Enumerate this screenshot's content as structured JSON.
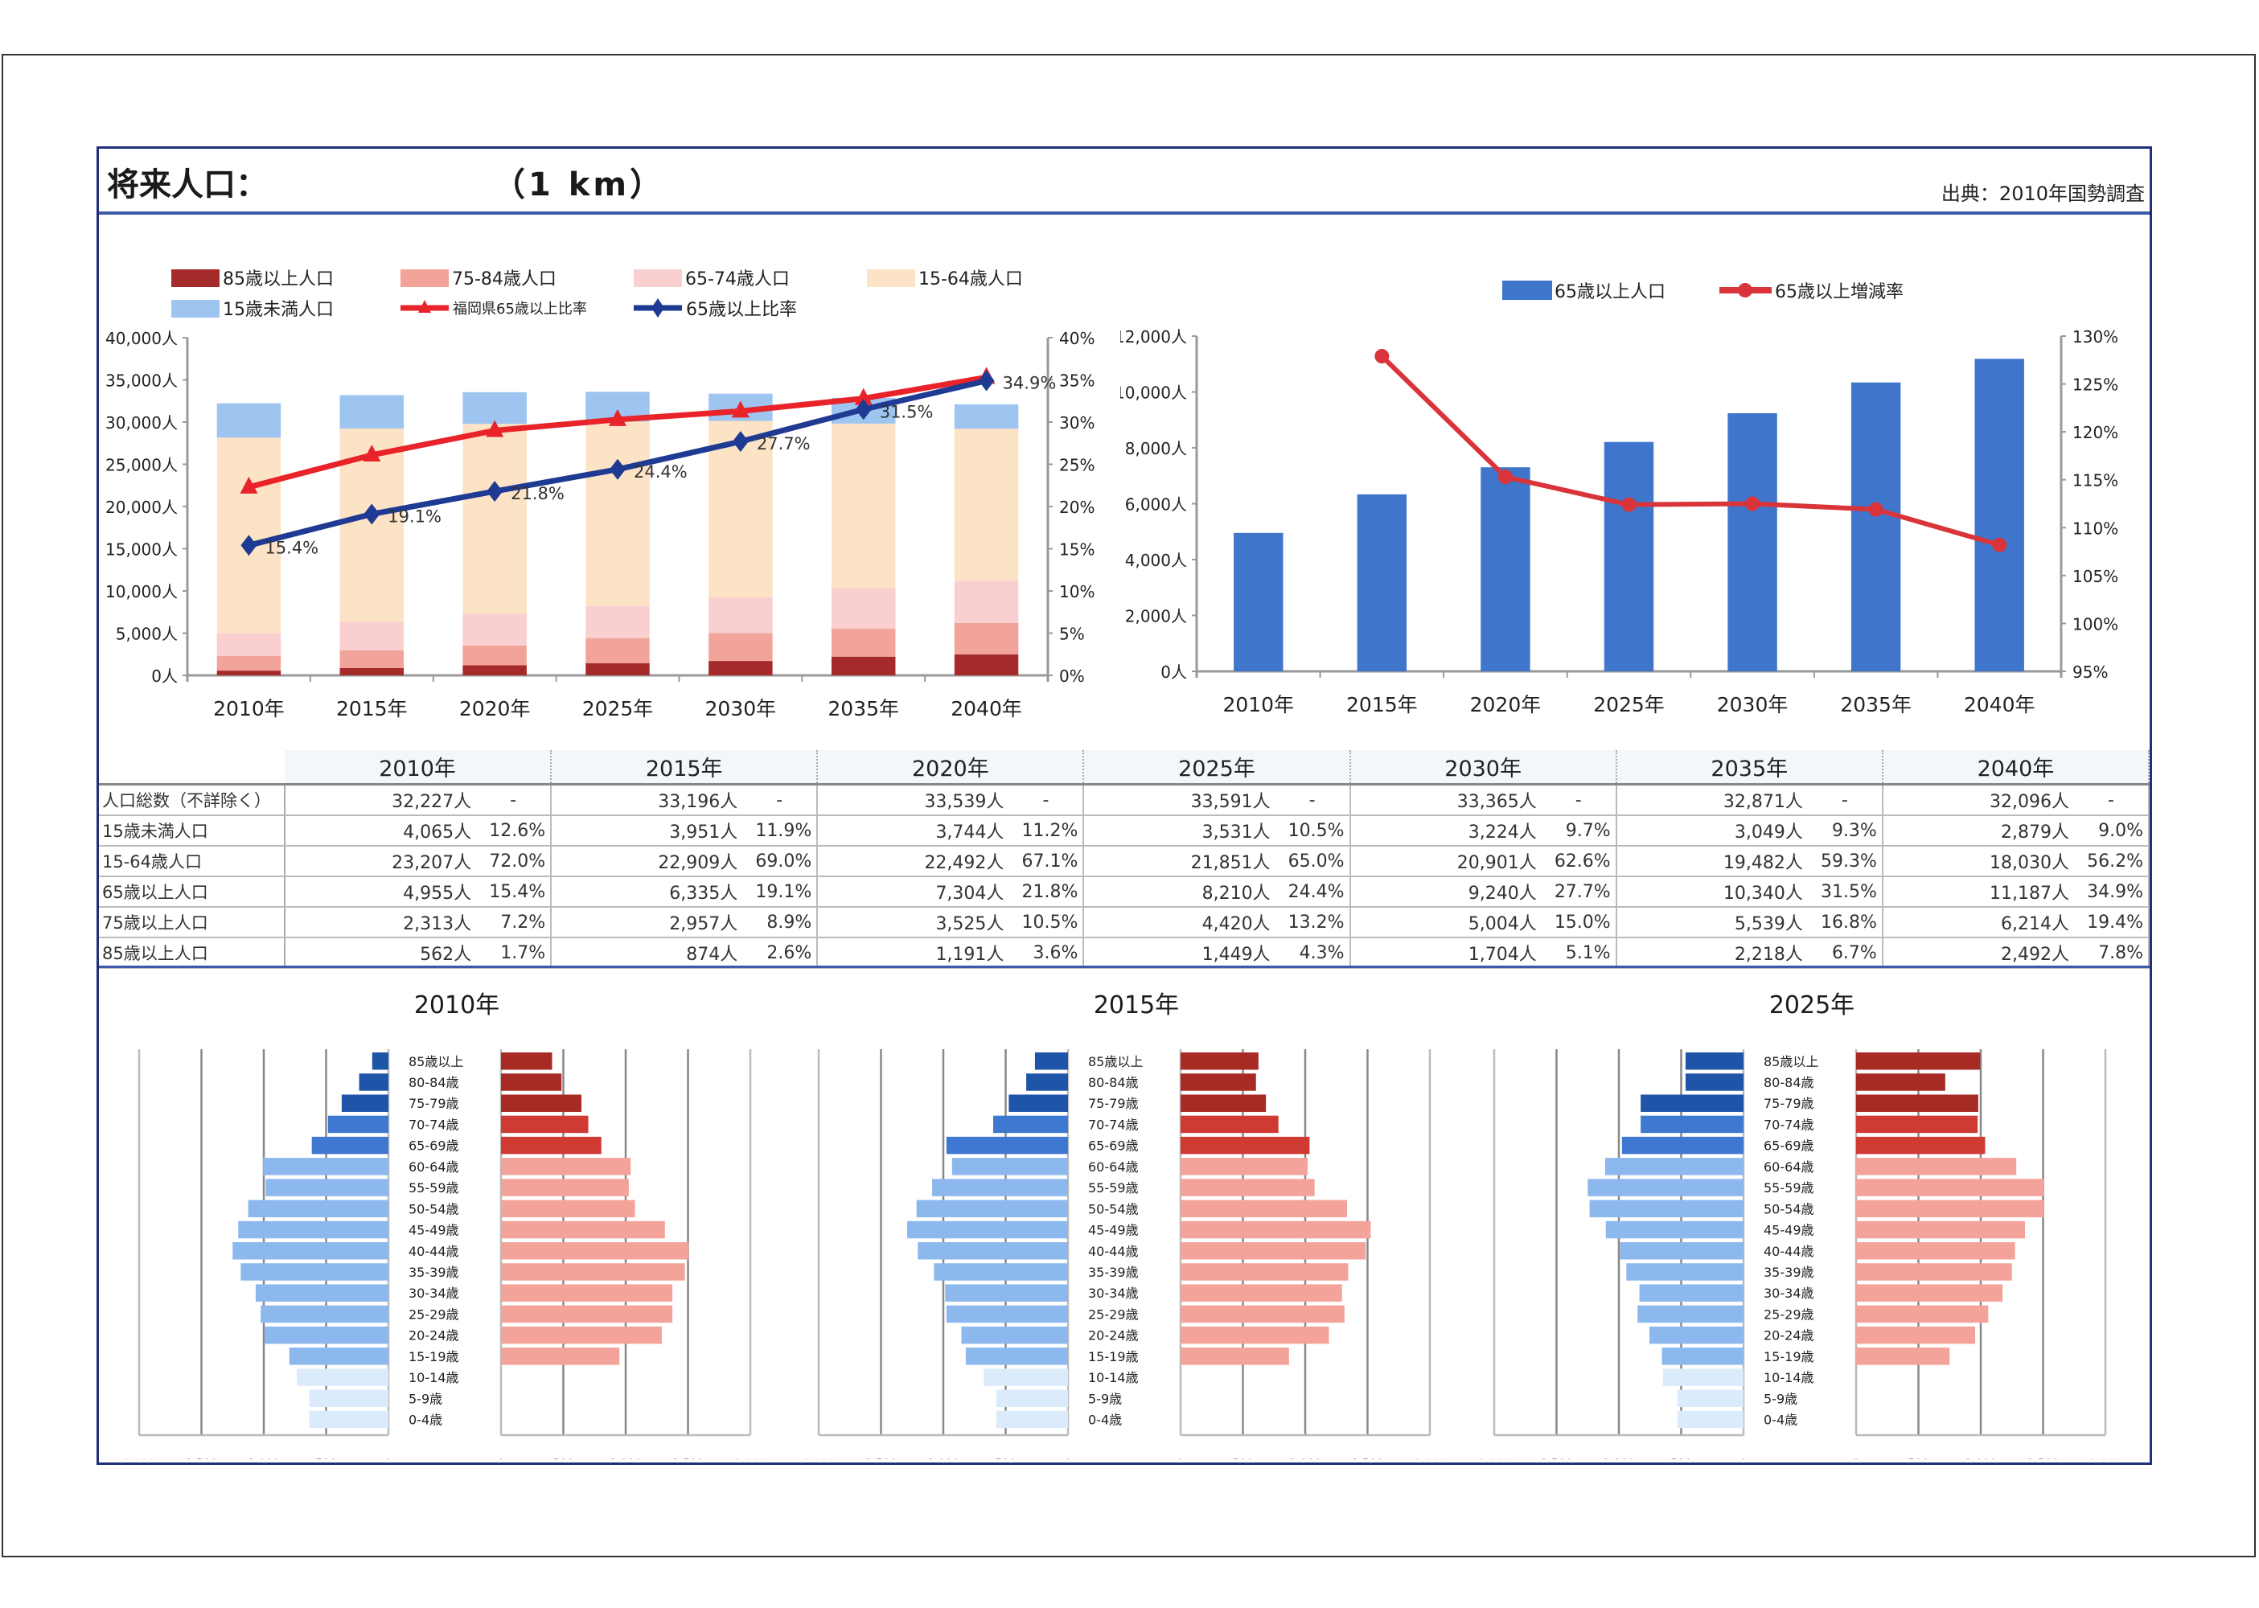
{
  "header": {
    "title": "将来人口：",
    "unit": "（1 km）",
    "source": "出典：2010年国勢調査"
  },
  "colors": {
    "age85plus": "#a52a2a",
    "age75_84": "#f2a49a",
    "age65_74": "#f9cfd0",
    "age15_64": "#fde3c6",
    "under15": "#9ec4f0",
    "fukuoka_ratio": "#e8232a",
    "ratio65": "#1f3a93",
    "bar65": "#3f76cc",
    "growth_line": "#d9343a",
    "pyr_male_old": "#1f55a8",
    "pyr_male_mid": "#3e78d0",
    "pyr_male_work": "#8cb8ee",
    "pyr_male_young": "#dcebfb",
    "pyr_female_old": "#a82a25",
    "pyr_female_mid": "#cf3a33",
    "pyr_female_work": "#f4a39a",
    "pyr_female_young": "#ffffff"
  },
  "chart_data": [
    {
      "type": "bar",
      "subtype": "stacked-bar-with-lines",
      "title": "",
      "categories": [
        "2010年",
        "2015年",
        "2020年",
        "2025年",
        "2030年",
        "2035年",
        "2040年"
      ],
      "series": [
        {
          "name": "85歳以上人口",
          "axis": "left",
          "values": [
            562,
            874,
            1191,
            1449,
            1704,
            2218,
            2492
          ]
        },
        {
          "name": "75-84歳人口",
          "axis": "left",
          "values": [
            1751,
            2083,
            2334,
            2971,
            3300,
            3321,
            3722
          ]
        },
        {
          "name": "65-74歳人口",
          "axis": "left",
          "values": [
            2642,
            3378,
            3779,
            3790,
            4236,
            4801,
            4973
          ]
        },
        {
          "name": "15-64歳人口",
          "axis": "left",
          "values": [
            23207,
            22909,
            22492,
            21851,
            20901,
            19482,
            18030
          ]
        },
        {
          "name": "15歳未満人口",
          "axis": "left",
          "values": [
            4065,
            3951,
            3744,
            3531,
            3224,
            3049,
            2879
          ]
        },
        {
          "name": "福岡県65歳以上比率",
          "type": "line",
          "axis": "right",
          "values": [
            22.3,
            26.1,
            29.0,
            30.3,
            31.3,
            32.8,
            35.3
          ]
        },
        {
          "name": "65歳以上比率",
          "type": "line",
          "axis": "right",
          "values": [
            15.4,
            19.1,
            21.8,
            24.4,
            27.7,
            31.5,
            34.9
          ],
          "labels": [
            "15.4%",
            "19.1%",
            "21.8%",
            "24.4%",
            "27.7%",
            "31.5%",
            "34.9%"
          ]
        }
      ],
      "legend_order": [
        "85歳以上人口",
        "75-84歳人口",
        "65-74歳人口",
        "15-64歳人口",
        "15歳未満人口",
        "福岡県65歳以上比率",
        "65歳以上比率"
      ],
      "legend_position": "top",
      "ylim": [
        0,
        40000
      ],
      "yticks": [
        "0人",
        "5,000人",
        "10,000人",
        "15,000人",
        "20,000人",
        "25,000人",
        "30,000人",
        "35,000人",
        "40,000人"
      ],
      "y2lim": [
        0,
        40
      ],
      "y2ticks": [
        "0%",
        "5%",
        "10%",
        "15%",
        "20%",
        "25%",
        "30%",
        "35%",
        "40%"
      ],
      "grid": false
    },
    {
      "type": "bar",
      "subtype": "bar-with-line",
      "title": "",
      "categories": [
        "2010年",
        "2015年",
        "2020年",
        "2025年",
        "2030年",
        "2035年",
        "2040年"
      ],
      "series": [
        {
          "name": "65歳以上人口",
          "axis": "left",
          "values": [
            4955,
            6335,
            7304,
            8210,
            9240,
            10340,
            11187
          ]
        },
        {
          "name": "65歳以上増減率",
          "type": "line",
          "axis": "right",
          "values": [
            null,
            127.9,
            115.3,
            112.4,
            112.5,
            111.9,
            108.2
          ]
        }
      ],
      "legend_position": "top",
      "ylim": [
        0,
        12000
      ],
      "yticks": [
        "0人",
        "2,000人",
        "4,000人",
        "6,000人",
        "8,000人",
        "10,000人",
        "12,000人"
      ],
      "y2lim": [
        95,
        130
      ],
      "y2ticks": [
        "95%",
        "100%",
        "105%",
        "110%",
        "115%",
        "120%",
        "125%",
        "130%"
      ],
      "grid": false
    },
    {
      "type": "table",
      "columns": [
        "2010年",
        "2015年",
        "2020年",
        "2025年",
        "2030年",
        "2035年",
        "2040年"
      ],
      "rows": [
        {
          "label": "人口総数（不詳除く）",
          "values": [
            "32,227人",
            "33,196人",
            "33,539人",
            "33,591人",
            "33,365人",
            "32,871人",
            "32,096人"
          ],
          "pcts": [
            "-",
            "-",
            "-",
            "-",
            "-",
            "-",
            "-"
          ]
        },
        {
          "label": "15歳未満人口",
          "values": [
            "4,065人",
            "3,951人",
            "3,744人",
            "3,531人",
            "3,224人",
            "3,049人",
            "2,879人"
          ],
          "pcts": [
            "12.6%",
            "11.9%",
            "11.2%",
            "10.5%",
            "9.7%",
            "9.3%",
            "9.0%"
          ]
        },
        {
          "label": "15-64歳人口",
          "values": [
            "23,207人",
            "22,909人",
            "22,492人",
            "21,851人",
            "20,901人",
            "19,482人",
            "18,030人"
          ],
          "pcts": [
            "72.0%",
            "69.0%",
            "67.1%",
            "65.0%",
            "62.6%",
            "59.3%",
            "56.2%"
          ]
        },
        {
          "label": "65歳以上人口",
          "values": [
            "4,955人",
            "6,335人",
            "7,304人",
            "8,210人",
            "9,240人",
            "10,340人",
            "11,187人"
          ],
          "pcts": [
            "15.4%",
            "19.1%",
            "21.8%",
            "24.4%",
            "27.7%",
            "31.5%",
            "34.9%"
          ]
        },
        {
          "label": "75歳以上人口",
          "values": [
            "2,313人",
            "2,957人",
            "3,525人",
            "4,420人",
            "5,004人",
            "5,539人",
            "6,214人"
          ],
          "pcts": [
            "7.2%",
            "8.9%",
            "10.5%",
            "13.2%",
            "15.0%",
            "16.8%",
            "19.4%"
          ]
        },
        {
          "label": "85歳以上人口",
          "values": [
            "562人",
            "874人",
            "1,191人",
            "1,449人",
            "1,704人",
            "2,218人",
            "2,492人"
          ],
          "pcts": [
            "1.7%",
            "2.6%",
            "3.6%",
            "4.3%",
            "5.1%",
            "6.7%",
            "7.8%"
          ]
        }
      ]
    },
    {
      "type": "bar",
      "subtype": "population-pyramid",
      "title": "2010年",
      "age_groups": [
        "85歳以上",
        "80-84歳",
        "75-79歳",
        "70-74歳",
        "65-69歳",
        "60-64歳",
        "55-59歳",
        "50-54歳",
        "45-49歳",
        "40-44歳",
        "35-39歳",
        "30-34歳",
        "25-29歳",
        "20-24歳",
        "15-19歳",
        "10-14歳",
        "5-9歳",
        "0-4歳"
      ],
      "male": [
        130,
        235,
        375,
        485,
        615,
        1005,
        985,
        1125,
        1205,
        1250,
        1185,
        1065,
        1025,
        995,
        795,
        735,
        635,
        635
      ],
      "female": [
        410,
        485,
        645,
        700,
        805,
        1040,
        1025,
        1075,
        1315,
        1505,
        1475,
        1375,
        1375,
        1290,
        950,
        0,
        0,
        0
      ],
      "xlim": [
        0,
        2000
      ],
      "xticks_left": [
        "2,000",
        "1,500",
        "1,000",
        "500",
        "0"
      ],
      "xticks_right": [
        "0",
        "500",
        "1,000",
        "1,500",
        "2,000"
      ]
    },
    {
      "type": "bar",
      "subtype": "population-pyramid",
      "title": "2015年",
      "age_groups": [
        "85歳以上",
        "80-84歳",
        "75-79歳",
        "70-74歳",
        "65-69歳",
        "60-64歳",
        "55-59歳",
        "50-54歳",
        "45-49歳",
        "40-44歳",
        "35-39歳",
        "30-34歳",
        "25-29歳",
        "20-24歳",
        "15-19歳",
        "10-14歳",
        "5-9歳",
        "0-4歳"
      ],
      "male": [
        265,
        335,
        475,
        600,
        975,
        930,
        1090,
        1215,
        1290,
        1205,
        1075,
        985,
        975,
        855,
        820,
        675,
        575,
        575
      ],
      "female": [
        625,
        605,
        685,
        785,
        1035,
        1020,
        1075,
        1335,
        1525,
        1485,
        1345,
        1295,
        1315,
        1190,
        870,
        0,
        0,
        0
      ],
      "xlim": [
        0,
        2000
      ],
      "xticks_left": [
        "2,000",
        "1,500",
        "1,000",
        "500",
        "0"
      ],
      "xticks_right": [
        "0",
        "500",
        "1,000",
        "1,500",
        "2,000"
      ]
    },
    {
      "type": "bar",
      "subtype": "population-pyramid",
      "title": "2025年",
      "age_groups": [
        "85歳以上",
        "80-84歳",
        "75-79歳",
        "70-74歳",
        "65-69歳",
        "60-64歳",
        "55-59歳",
        "50-54歳",
        "45-49歳",
        "40-44歳",
        "35-39歳",
        "30-34歳",
        "25-29歳",
        "20-24歳",
        "15-19歳",
        "10-14歳",
        "5-9歳",
        "0-4歳"
      ],
      "male": [
        465,
        465,
        825,
        825,
        975,
        1110,
        1250,
        1235,
        1105,
        990,
        940,
        835,
        850,
        755,
        655,
        645,
        530,
        530
      ],
      "female": [
        995,
        715,
        980,
        975,
        1035,
        1285,
        1505,
        1505,
        1355,
        1275,
        1250,
        1175,
        1060,
        955,
        750,
        0,
        0,
        0
      ],
      "xlim": [
        0,
        2000
      ],
      "xticks_left": [
        "2,000",
        "1,500",
        "1,000",
        "500",
        "0"
      ],
      "xticks_right": [
        "0",
        "500",
        "1,000",
        "1,500",
        "2,000"
      ]
    }
  ]
}
